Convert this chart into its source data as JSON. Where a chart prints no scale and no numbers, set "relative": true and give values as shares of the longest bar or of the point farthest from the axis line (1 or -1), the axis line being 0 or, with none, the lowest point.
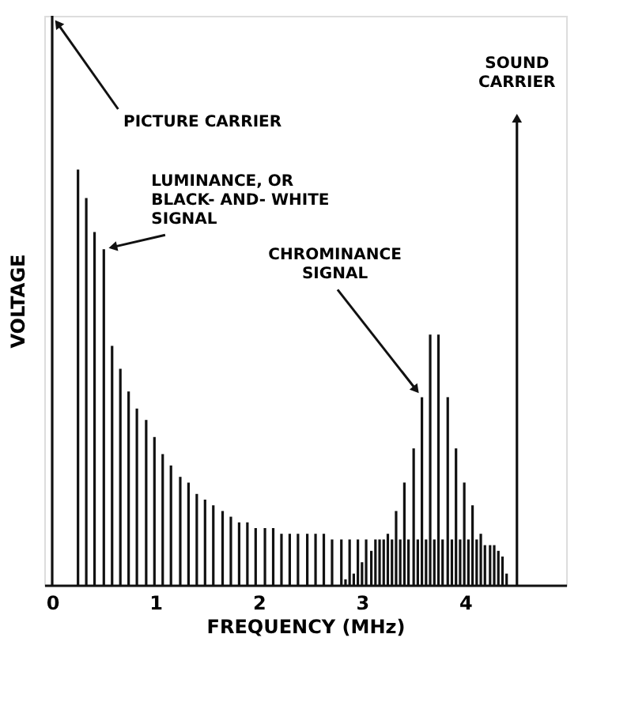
{
  "chart_data": {
    "type": "bar",
    "relative": true,
    "xlabel": "FREQUENCY (MHz)",
    "ylabel": "VOLTAGE",
    "xlim": [
      0,
      4.9
    ],
    "xticks": [
      0,
      1,
      2,
      3,
      4
    ],
    "tick_labels": "x",
    "grid": false,
    "series": [
      {
        "color": "#111111",
        "x": [
          0
        ],
        "values": [
          1
        ]
      },
      {
        "color": "#111111",
        "x": [
          0.25,
          0.33,
          0.41,
          0.5,
          0.58,
          0.66,
          0.74,
          0.82,
          0.91,
          0.99,
          1.07,
          1.15,
          1.24,
          1.32,
          1.4,
          1.48,
          1.56,
          1.65,
          1.73,
          1.81,
          1.89,
          1.97,
          2.06,
          2.14,
          2.22,
          2.3,
          2.38,
          2.47,
          2.55,
          2.63,
          2.71,
          2.8,
          2.88,
          2.96,
          3.04,
          3.13,
          3.21,
          3.29,
          3.37,
          3.45,
          3.54,
          3.62,
          3.7,
          3.78,
          3.87,
          3.95,
          4.03,
          4.11,
          4.19,
          4.28,
          4.36
        ],
        "values": [
          0.73,
          0.68,
          0.62,
          0.59,
          0.42,
          0.38,
          0.34,
          0.31,
          0.29,
          0.26,
          0.23,
          0.21,
          0.19,
          0.18,
          0.16,
          0.15,
          0.14,
          0.13,
          0.12,
          0.11,
          0.11,
          0.1,
          0.1,
          0.1,
          0.09,
          0.09,
          0.09,
          0.09,
          0.09,
          0.09,
          0.08,
          0.08,
          0.08,
          0.08,
          0.08,
          0.08,
          0.08,
          0.08,
          0.08,
          0.08,
          0.08,
          0.08,
          0.08,
          0.08,
          0.08,
          0.08,
          0.08,
          0.08,
          0.07,
          0.07,
          0.05
        ]
      },
      {
        "color": "#111111",
        "x": [
          2.84,
          2.92,
          3.0,
          3.09,
          3.17,
          3.25,
          3.33,
          3.41,
          3.5,
          3.58,
          3.66,
          3.74,
          3.83,
          3.91,
          3.99,
          4.07,
          4.15,
          4.24,
          4.32,
          4.4
        ],
        "values": [
          0.01,
          0.02,
          0.04,
          0.06,
          0.08,
          0.09,
          0.13,
          0.18,
          0.24,
          0.33,
          0.44,
          0.44,
          0.33,
          0.24,
          0.18,
          0.14,
          0.09,
          0.07,
          0.06,
          0.02
        ]
      },
      {
        "color": "#111111",
        "x": [
          4.5
        ],
        "values": [
          0.82
        ]
      }
    ],
    "annotations": [
      {
        "text": "PICTURE CARRIER",
        "x": 0,
        "y": 1
      },
      {
        "text": "LUMINANCE, OR\nBLACK- AND- WHITE\nSIGNAL",
        "x": 0.5,
        "y": 0.59
      },
      {
        "text": "CHROMINANCE\nSIGNAL",
        "x": 3.58,
        "y": 0.33
      },
      {
        "text": "SOUND\nCARRIER",
        "x": 4.5,
        "y": 0.82
      }
    ]
  }
}
